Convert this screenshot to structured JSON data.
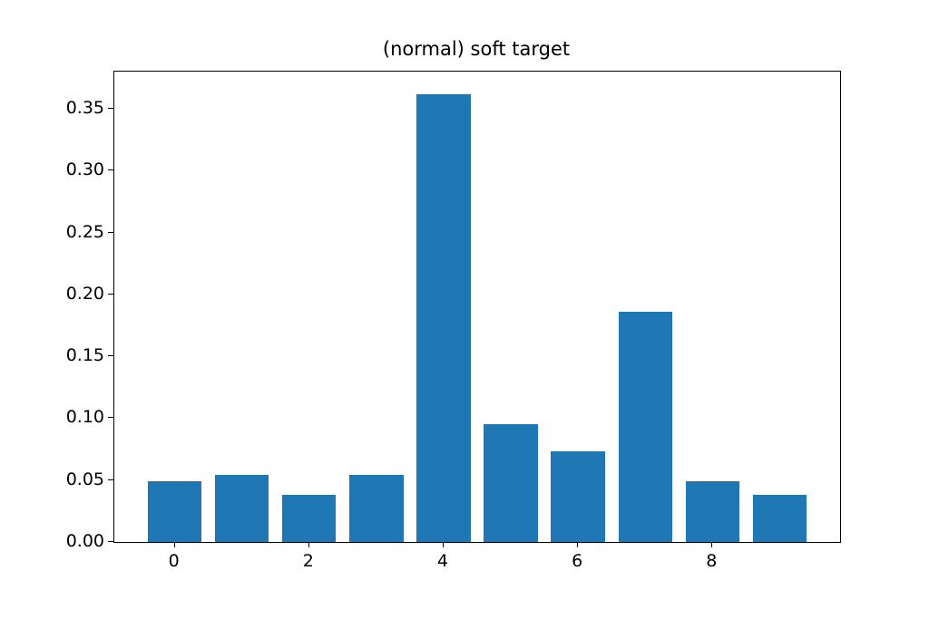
{
  "chart_data": {
    "type": "bar",
    "title": "(normal) soft target",
    "x": [
      0,
      1,
      2,
      3,
      4,
      5,
      6,
      7,
      8,
      9
    ],
    "categories": [
      "0",
      "1",
      "2",
      "3",
      "4",
      "5",
      "6",
      "7",
      "8",
      "9"
    ],
    "values": [
      0.049,
      0.054,
      0.038,
      0.054,
      0.362,
      0.095,
      0.073,
      0.186,
      0.049,
      0.038
    ],
    "xlabel": "",
    "ylabel": "",
    "xlim": [
      -0.9,
      9.9
    ],
    "ylim": [
      0,
      0.38
    ],
    "bar_width": 0.8,
    "bar_color": "#1f77b4",
    "grid": "off",
    "legend": "none",
    "yticks": [
      0.0,
      0.05,
      0.1,
      0.15,
      0.2,
      0.25,
      0.3,
      0.35
    ],
    "ytick_labels": [
      "0.00",
      "0.05",
      "0.10",
      "0.15",
      "0.20",
      "0.25",
      "0.30",
      "0.35"
    ],
    "xticks": [
      0,
      2,
      4,
      6,
      8
    ],
    "xtick_labels": [
      "0",
      "2",
      "4",
      "6",
      "8"
    ]
  }
}
